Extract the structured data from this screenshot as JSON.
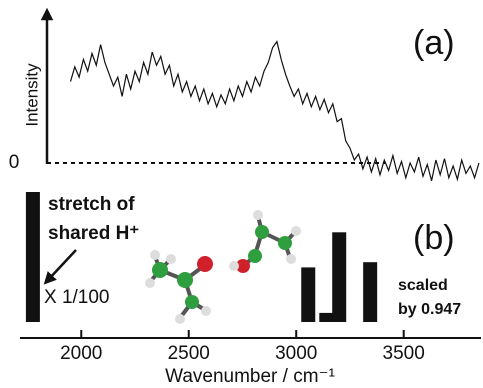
{
  "chart_data": [
    {
      "type": "line",
      "panel_label": "(a)",
      "y_label": "Intensity",
      "color": "#111111",
      "x": [
        1950,
        1970,
        1990,
        2010,
        2030,
        2050,
        2070,
        2090,
        2110,
        2130,
        2150,
        2170,
        2190,
        2210,
        2230,
        2250,
        2270,
        2290,
        2310,
        2330,
        2350,
        2370,
        2390,
        2410,
        2430,
        2450,
        2470,
        2490,
        2510,
        2530,
        2550,
        2570,
        2590,
        2610,
        2630,
        2650,
        2670,
        2690,
        2710,
        2730,
        2750,
        2770,
        2790,
        2810,
        2830,
        2850,
        2870,
        2890,
        2910,
        2930,
        2950,
        2970,
        2990,
        3010,
        3030,
        3050,
        3070,
        3090,
        3110,
        3130,
        3150,
        3170,
        3190,
        3210,
        3230,
        3250,
        3270,
        3290,
        3310,
        3330,
        3350,
        3370,
        3390,
        3410,
        3430,
        3450,
        3470,
        3490,
        3510,
        3530,
        3550,
        3570,
        3590,
        3610,
        3630,
        3650,
        3670,
        3690,
        3710,
        3730,
        3750,
        3770,
        3790,
        3810,
        3830,
        3850
      ],
      "values": [
        0.55,
        0.65,
        0.58,
        0.7,
        0.62,
        0.74,
        0.66,
        0.8,
        0.68,
        0.6,
        0.52,
        0.58,
        0.45,
        0.6,
        0.5,
        0.62,
        0.55,
        0.68,
        0.6,
        0.75,
        0.66,
        0.72,
        0.6,
        0.66,
        0.52,
        0.6,
        0.48,
        0.55,
        0.45,
        0.52,
        0.42,
        0.5,
        0.4,
        0.47,
        0.38,
        0.46,
        0.4,
        0.5,
        0.42,
        0.52,
        0.45,
        0.55,
        0.48,
        0.58,
        0.52,
        0.62,
        0.68,
        0.78,
        0.82,
        0.7,
        0.6,
        0.52,
        0.45,
        0.5,
        0.4,
        0.47,
        0.38,
        0.45,
        0.36,
        0.43,
        0.34,
        0.4,
        0.28,
        0.3,
        0.15,
        0.1,
        0.02,
        0.06,
        -0.04,
        0.04,
        -0.06,
        0.03,
        -0.08,
        0.02,
        -0.05,
        0.05,
        -0.07,
        0.01,
        -0.1,
        0.0,
        -0.06,
        0.04,
        -0.09,
        -0.01,
        -0.12,
        0.02,
        -0.08,
        0.03,
        -0.1,
        -0.02,
        -0.11,
        0.02,
        -0.07,
        -0.02,
        -0.1,
        0.0
      ],
      "xlim": [
        1715,
        3855
      ],
      "ylim": [
        -0.2,
        1.0
      ],
      "yticks": [
        0
      ]
    },
    {
      "type": "bar",
      "panel_label": "(b)",
      "x_label": "Wavenumber / cm⁻¹",
      "color": "#111111",
      "x": [
        1775,
        3056,
        3140,
        3200,
        3344
      ],
      "values": [
        1.0,
        0.42,
        0.07,
        0.69,
        0.46
      ],
      "xlim": [
        1715,
        3855
      ],
      "ylim": [
        0,
        1.0
      ],
      "xticks": [
        2000,
        2500,
        3000,
        3500
      ],
      "annotations": [
        "stretch of",
        "shared H⁺",
        "X 1/100",
        "scaled",
        "by 0.947"
      ]
    }
  ]
}
